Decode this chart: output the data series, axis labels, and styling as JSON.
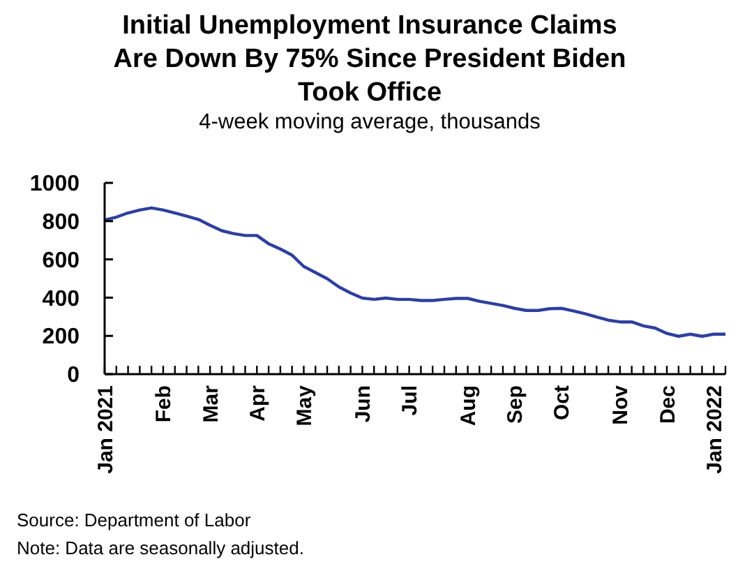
{
  "chart_data": {
    "type": "line",
    "title": "Initial Unemployment Insurance Claims Are Down By 75% Since President Biden Took Office",
    "subtitle": "4-week moving average, thousands",
    "x": [
      "2021-01-02",
      "2021-01-09",
      "2021-01-16",
      "2021-01-23",
      "2021-01-30",
      "2021-02-06",
      "2021-02-13",
      "2021-02-20",
      "2021-02-27",
      "2021-03-06",
      "2021-03-13",
      "2021-03-20",
      "2021-03-27",
      "2021-04-03",
      "2021-04-10",
      "2021-04-17",
      "2021-04-24",
      "2021-05-01",
      "2021-05-08",
      "2021-05-15",
      "2021-05-22",
      "2021-05-29",
      "2021-06-05",
      "2021-06-12",
      "2021-06-19",
      "2021-06-26",
      "2021-07-03",
      "2021-07-10",
      "2021-07-17",
      "2021-07-24",
      "2021-07-31",
      "2021-08-07",
      "2021-08-14",
      "2021-08-21",
      "2021-08-28",
      "2021-09-04",
      "2021-09-11",
      "2021-09-18",
      "2021-09-25",
      "2021-10-02",
      "2021-10-09",
      "2021-10-16",
      "2021-10-23",
      "2021-10-30",
      "2021-11-06",
      "2021-11-13",
      "2021-11-20",
      "2021-11-27",
      "2021-12-04",
      "2021-12-11",
      "2021-12-18",
      "2021-12-25",
      "2022-01-01",
      "2022-01-08"
    ],
    "series": [
      {
        "color": "#2e3f9e",
        "values": [
          806,
          821,
          843,
          858,
          869,
          858,
          843,
          826,
          809,
          778,
          750,
          735,
          725,
          725,
          682,
          654,
          622,
          563,
          531,
          499,
          456,
          424,
          398,
          391,
          398,
          391,
          391,
          385,
          385,
          391,
          396,
          396,
          381,
          370,
          359,
          344,
          333,
          333,
          342,
          344,
          331,
          316,
          299,
          282,
          273,
          273,
          252,
          241,
          213,
          198,
          209,
          198,
          209,
          209
        ]
      }
    ],
    "xlim": [
      "2021-01-02",
      "2022-01-08"
    ],
    "xticks": [
      {
        "value": "2021-01-02",
        "label": "Jan 2021"
      },
      {
        "value": "2021-01-09",
        "label": null
      },
      {
        "value": "2021-01-16",
        "label": null
      },
      {
        "value": "2021-01-23",
        "label": null
      },
      {
        "value": "2021-01-30",
        "label": null
      },
      {
        "value": "2021-02-06",
        "label": "Feb"
      },
      {
        "value": "2021-02-13",
        "label": null
      },
      {
        "value": "2021-02-20",
        "label": null
      },
      {
        "value": "2021-02-27",
        "label": null
      },
      {
        "value": "2021-03-06",
        "label": "Mar"
      },
      {
        "value": "2021-03-13",
        "label": null
      },
      {
        "value": "2021-03-20",
        "label": null
      },
      {
        "value": "2021-03-27",
        "label": null
      },
      {
        "value": "2021-04-03",
        "label": "Apr"
      },
      {
        "value": "2021-04-10",
        "label": null
      },
      {
        "value": "2021-04-17",
        "label": null
      },
      {
        "value": "2021-04-24",
        "label": null
      },
      {
        "value": "2021-05-01",
        "label": "May"
      },
      {
        "value": "2021-05-08",
        "label": null
      },
      {
        "value": "2021-05-15",
        "label": null
      },
      {
        "value": "2021-05-22",
        "label": null
      },
      {
        "value": "2021-05-29",
        "label": null
      },
      {
        "value": "2021-06-05",
        "label": "Jun"
      },
      {
        "value": "2021-06-12",
        "label": null
      },
      {
        "value": "2021-06-19",
        "label": null
      },
      {
        "value": "2021-06-26",
        "label": null
      },
      {
        "value": "2021-07-03",
        "label": "Jul"
      },
      {
        "value": "2021-07-10",
        "label": null
      },
      {
        "value": "2021-07-17",
        "label": null
      },
      {
        "value": "2021-07-24",
        "label": null
      },
      {
        "value": "2021-07-31",
        "label": null
      },
      {
        "value": "2021-08-07",
        "label": "Aug"
      },
      {
        "value": "2021-08-14",
        "label": null
      },
      {
        "value": "2021-08-21",
        "label": null
      },
      {
        "value": "2021-08-28",
        "label": null
      },
      {
        "value": "2021-09-04",
        "label": "Sep"
      },
      {
        "value": "2021-09-11",
        "label": null
      },
      {
        "value": "2021-09-18",
        "label": null
      },
      {
        "value": "2021-09-25",
        "label": null
      },
      {
        "value": "2021-10-02",
        "label": "Oct"
      },
      {
        "value": "2021-10-09",
        "label": null
      },
      {
        "value": "2021-10-16",
        "label": null
      },
      {
        "value": "2021-10-23",
        "label": null
      },
      {
        "value": "2021-10-30",
        "label": null
      },
      {
        "value": "2021-11-06",
        "label": "Nov"
      },
      {
        "value": "2021-11-13",
        "label": null
      },
      {
        "value": "2021-11-20",
        "label": null
      },
      {
        "value": "2021-11-27",
        "label": null
      },
      {
        "value": "2021-12-04",
        "label": "Dec"
      },
      {
        "value": "2021-12-11",
        "label": null
      },
      {
        "value": "2021-12-18",
        "label": null
      },
      {
        "value": "2021-12-25",
        "label": null
      },
      {
        "value": "2022-01-01",
        "label": "Jan 2022"
      },
      {
        "value": "2022-01-08",
        "label": null
      }
    ],
    "ylim": [
      0,
      1000
    ],
    "yticks": [
      0,
      200,
      400,
      600,
      800,
      1000
    ],
    "annotations": [
      "Source: Department of Labor",
      "Note: Data are seasonally adjusted."
    ]
  }
}
